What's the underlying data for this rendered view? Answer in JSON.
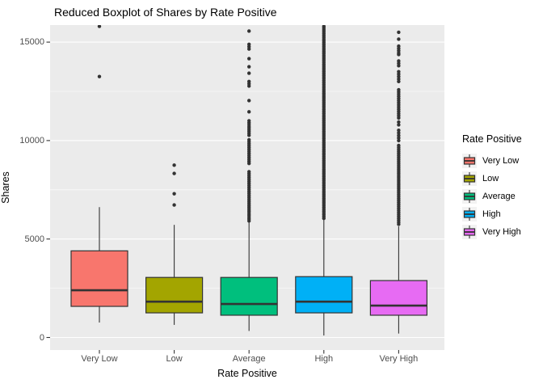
{
  "title": "Reduced Boxplot of Shares by Rate Positive",
  "chart_data": {
    "type": "boxplot",
    "title": "Reduced Boxplot of Shares by Rate Positive",
    "xlabel": "Rate Positive",
    "ylabel": "Shares",
    "categories": [
      "Very Low",
      "Low",
      "Average",
      "High",
      "Very High"
    ],
    "ylim": [
      -640,
      15860
    ],
    "yticks": [
      0,
      5000,
      10000,
      15000
    ],
    "ytick_labels": [
      "0",
      "5000",
      "10000",
      "15000"
    ],
    "yticks_minor": [
      2500,
      7500,
      12500
    ],
    "grid": "on",
    "legend": {
      "title": "Rate Positive",
      "position": "right"
    },
    "colors": {
      "panel_background": "#EBEBEB",
      "grid": "#FFFFFF",
      "box_stroke": "#333333",
      "outlier": "#333333",
      "axis_text": "#4D4D4D",
      "legend_key_background": "#F2F2F2",
      "palette": [
        "#F8766D",
        "#A3A500",
        "#00BF7D",
        "#00B0F6",
        "#E76BF3"
      ]
    },
    "series": [
      {
        "name": "Very Low",
        "color": "#F8766D",
        "whisker_low": 760,
        "q1": 1580,
        "median": 2400,
        "q3": 4400,
        "whisker_high": 6620,
        "outliers": [
          13250,
          15800
        ],
        "outlier_runs": []
      },
      {
        "name": "Low",
        "color": "#A3A500",
        "whisker_low": 640,
        "q1": 1250,
        "median": 1820,
        "q3": 3050,
        "whisker_high": 5720,
        "outliers": [
          6730,
          7300,
          8330,
          8750
        ],
        "outlier_runs": []
      },
      {
        "name": "Average",
        "color": "#00BF7D",
        "whisker_low": 330,
        "q1": 1130,
        "median": 1700,
        "q3": 3050,
        "whisker_high": 5840,
        "outliers": [
          15560,
          14160,
          13750,
          13420,
          12030,
          11460
        ],
        "outlier_runs": [
          [
            14650,
            15000,
            120
          ],
          [
            12770,
            13000,
            115
          ],
          [
            10270,
            11090,
            105
          ],
          [
            8840,
            10070,
            100
          ],
          [
            5920,
            8510,
            100
          ]
        ]
      },
      {
        "name": "High",
        "color": "#00B0F6",
        "whisker_low": 100,
        "q1": 1250,
        "median": 1820,
        "q3": 3090,
        "whisker_high": 6000,
        "outliers": [],
        "outlier_runs": [
          [
            6050,
            15850,
            92
          ]
        ]
      },
      {
        "name": "Very High",
        "color": "#E76BF3",
        "whisker_low": 200,
        "q1": 1130,
        "median": 1620,
        "q3": 2890,
        "whisker_high": 5640,
        "outliers": [
          15500,
          15150,
          14370
        ],
        "outlier_runs": [
          [
            5750,
            9800,
            100
          ],
          [
            10000,
            10550,
            130
          ],
          [
            10800,
            10950,
            140
          ],
          [
            11150,
            12600,
            110
          ],
          [
            13000,
            13500,
            125
          ],
          [
            13800,
            14050,
            120
          ],
          [
            14450,
            14800,
            115
          ]
        ]
      }
    ]
  }
}
